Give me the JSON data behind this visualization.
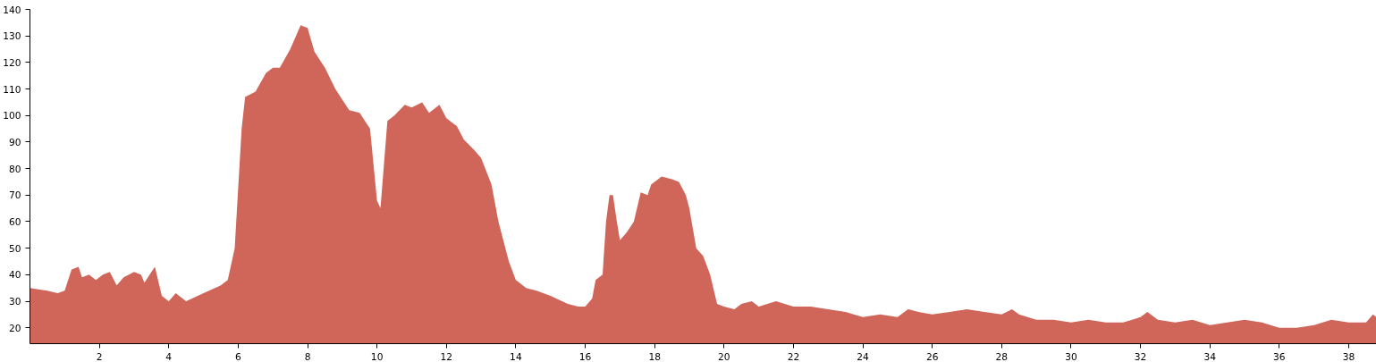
{
  "chart_data": {
    "type": "area",
    "color": "#d0665a",
    "grid": false,
    "x": [
      0,
      0.5,
      0.8,
      1,
      1.2,
      1.4,
      1.5,
      1.7,
      1.9,
      2.1,
      2.3,
      2.5,
      2.7,
      3,
      3.2,
      3.3,
      3.5,
      3.6,
      3.8,
      4,
      4.2,
      4.5,
      5,
      5.5,
      5.7,
      5.9,
      6.1,
      6.2,
      6.5,
      6.8,
      7,
      7.2,
      7.5,
      7.8,
      8,
      8.2,
      8.5,
      8.8,
      9,
      9.2,
      9.5,
      9.8,
      10,
      10.1,
      10.3,
      10.5,
      10.8,
      11,
      11.3,
      11.5,
      11.8,
      12,
      12.3,
      12.5,
      12.8,
      13,
      13.3,
      13.5,
      13.8,
      14,
      14.3,
      14.6,
      15,
      15.5,
      15.8,
      16,
      16.2,
      16.3,
      16.5,
      16.6,
      16.7,
      16.8,
      16.9,
      17,
      17.2,
      17.4,
      17.6,
      17.8,
      17.9,
      18,
      18.2,
      18.5,
      18.7,
      18.9,
      19,
      19.2,
      19.4,
      19.6,
      19.8,
      20,
      20.3,
      20.5,
      20.8,
      21,
      21.5,
      22,
      22.5,
      23,
      23.5,
      24,
      24.5,
      25,
      25.3,
      25.6,
      26,
      26.5,
      27,
      27.5,
      28,
      28.3,
      28.5,
      29,
      29.5,
      30,
      30.5,
      31,
      31.5,
      32,
      32.2,
      32.5,
      33,
      33.5,
      34,
      34.5,
      35,
      35.5,
      36,
      36.5,
      37,
      37.5,
      38,
      38.5,
      38.7,
      38.8
    ],
    "values": [
      35,
      34,
      33,
      34,
      42,
      43,
      39,
      40,
      38,
      40,
      41,
      36,
      39,
      41,
      40,
      37,
      41,
      43,
      32,
      30,
      33,
      30,
      33,
      36,
      38,
      50,
      95,
      107,
      109,
      116,
      118,
      118,
      125,
      134,
      133,
      124,
      118,
      110,
      106,
      102,
      101,
      95,
      68,
      65,
      98,
      100,
      104,
      103,
      105,
      101,
      104,
      99,
      96,
      91,
      87,
      84,
      74,
      60,
      45,
      38,
      35,
      34,
      32,
      29,
      28,
      28,
      31,
      38,
      40,
      60,
      70,
      70,
      61,
      53,
      56,
      60,
      71,
      70,
      74,
      75,
      77,
      76,
      75,
      70,
      65,
      50,
      47,
      40,
      29,
      28,
      27,
      29,
      30,
      28,
      30,
      28,
      28,
      27,
      26,
      24,
      25,
      24,
      27,
      26,
      25,
      26,
      27,
      26,
      25,
      27,
      25,
      23,
      23,
      22,
      23,
      22,
      22,
      24,
      26,
      23,
      22,
      23,
      21,
      22,
      23,
      22,
      20,
      20,
      21,
      23,
      22,
      22,
      25,
      24
    ],
    "xlim": [
      0,
      38.8
    ],
    "ylim": [
      14,
      140
    ],
    "xticks": [
      2,
      4,
      6,
      8,
      10,
      12,
      14,
      16,
      18,
      20,
      22,
      24,
      26,
      28,
      30,
      32,
      34,
      36,
      38
    ],
    "yticks": [
      20,
      30,
      40,
      50,
      60,
      70,
      80,
      90,
      100,
      110,
      120,
      130,
      140
    ]
  }
}
